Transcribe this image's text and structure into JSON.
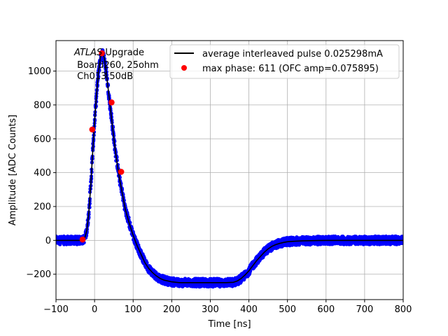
{
  "chart_data": {
    "type": "scatter",
    "xlabel": "Time [ns]",
    "ylabel": "Amplitude [ADC Counts]",
    "xlim": [
      -100,
      800
    ],
    "ylim": [
      -350,
      1180
    ],
    "xticks": [
      -100,
      0,
      100,
      200,
      300,
      400,
      500,
      600,
      700,
      800
    ],
    "yticks": [
      -200,
      0,
      200,
      400,
      600,
      800,
      1000
    ],
    "grid": true,
    "legend_position": "top-right",
    "annotation": {
      "line1_italic": "ATLAS",
      "line1_rest": " Upgrade",
      "line2": " Board260, 25ohm",
      "line3": " Ch013 50dB"
    },
    "series": [
      {
        "name": "",
        "kind": "scatter",
        "color": "#0000ff",
        "note": "dense sampled points along the pulse",
        "x": [
          -100,
          -70,
          -50,
          -40,
          -30,
          -25,
          -20,
          -15,
          -10,
          -5,
          0,
          5,
          10,
          15,
          20,
          25,
          30,
          35,
          40,
          45,
          50,
          55,
          60,
          65,
          70,
          75,
          80,
          90,
          100,
          110,
          120,
          130,
          140,
          150,
          160,
          170,
          180,
          190,
          200,
          220,
          240,
          260,
          280,
          300,
          320,
          340,
          360,
          370,
          380,
          390,
          400,
          410,
          420,
          430,
          440,
          450,
          460,
          470,
          480,
          490,
          500,
          520,
          540,
          560,
          580,
          600,
          620,
          640,
          660,
          680,
          700,
          720,
          740,
          760,
          780,
          800
        ],
        "y": [
          0,
          0,
          0,
          0,
          2,
          15,
          60,
          160,
          320,
          520,
          700,
          860,
          990,
          1080,
          1110,
          1080,
          1000,
          900,
          800,
          700,
          600,
          510,
          430,
          360,
          300,
          240,
          180,
          100,
          30,
          -30,
          -80,
          -130,
          -165,
          -190,
          -210,
          -225,
          -235,
          -240,
          -245,
          -250,
          -250,
          -250,
          -250,
          -250,
          -250,
          -250,
          -248,
          -240,
          -225,
          -205,
          -180,
          -150,
          -120,
          -95,
          -70,
          -50,
          -35,
          -25,
          -18,
          -12,
          -8,
          -5,
          -3,
          -2,
          -1,
          0,
          0,
          0,
          0,
          0,
          0,
          0,
          0,
          0,
          0,
          0
        ]
      },
      {
        "name": "average interleaved pulse 0.025298mA",
        "kind": "line",
        "color": "#000000",
        "x": [
          -100,
          -70,
          -50,
          -40,
          -30,
          -25,
          -20,
          -15,
          -10,
          -5,
          0,
          5,
          10,
          15,
          20,
          25,
          30,
          35,
          40,
          45,
          50,
          55,
          60,
          65,
          70,
          75,
          80,
          90,
          100,
          110,
          120,
          130,
          140,
          150,
          160,
          170,
          180,
          190,
          200,
          220,
          240,
          260,
          280,
          300,
          320,
          340,
          360,
          370,
          380,
          390,
          400,
          410,
          420,
          430,
          440,
          450,
          460,
          470,
          480,
          490,
          500,
          520,
          540,
          560,
          580,
          600,
          620,
          640,
          660,
          680,
          700,
          720,
          740,
          760,
          780,
          800
        ],
        "y": [
          0,
          0,
          0,
          0,
          2,
          15,
          60,
          160,
          320,
          520,
          700,
          860,
          990,
          1080,
          1110,
          1080,
          1000,
          900,
          800,
          700,
          600,
          510,
          430,
          360,
          300,
          240,
          180,
          100,
          30,
          -30,
          -80,
          -130,
          -165,
          -190,
          -210,
          -225,
          -235,
          -240,
          -245,
          -250,
          -250,
          -250,
          -250,
          -250,
          -250,
          -250,
          -248,
          -240,
          -225,
          -205,
          -180,
          -150,
          -120,
          -95,
          -70,
          -50,
          -35,
          -25,
          -18,
          -12,
          -8,
          -5,
          -3,
          -2,
          -1,
          0,
          0,
          0,
          0,
          0,
          0,
          0,
          0,
          0,
          0,
          0
        ]
      },
      {
        "name": "max phase: 611 (OFC amp=0.075895)",
        "kind": "markers",
        "color": "#ff0000",
        "x": [
          -31,
          -6,
          19,
          44,
          69
        ],
        "y": [
          5,
          655,
          1105,
          815,
          405
        ]
      }
    ]
  }
}
